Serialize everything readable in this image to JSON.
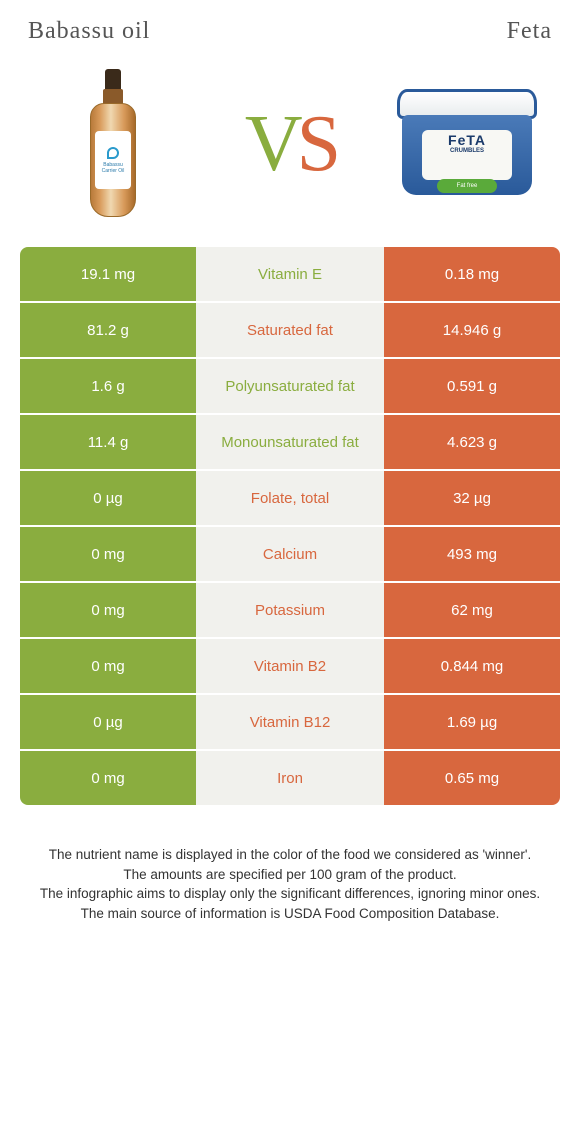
{
  "colors": {
    "left_food": "#8aad3f",
    "right_food": "#d8673e",
    "mid_bg": "#f1f1ed",
    "text_white": "#ffffff"
  },
  "header": {
    "left_title": "Babassu oil",
    "right_title": "Feta"
  },
  "vs": {
    "v": "V",
    "s": "S"
  },
  "bottle_label": {
    "line1": "Babassu",
    "line2": "Carrier Oil"
  },
  "tub": {
    "feta": "FeTA",
    "sub": "CRUMBLES",
    "badge": "Fat free"
  },
  "rows": [
    {
      "left": "19.1 mg",
      "label": "Vitamin E",
      "right": "0.18 mg",
      "winner": "left"
    },
    {
      "left": "81.2 g",
      "label": "Saturated fat",
      "right": "14.946 g",
      "winner": "right"
    },
    {
      "left": "1.6 g",
      "label": "Polyunsaturated fat",
      "right": "0.591 g",
      "winner": "left"
    },
    {
      "left": "11.4 g",
      "label": "Monounsaturated fat",
      "right": "4.623 g",
      "winner": "left"
    },
    {
      "left": "0 µg",
      "label": "Folate, total",
      "right": "32 µg",
      "winner": "right"
    },
    {
      "left": "0 mg",
      "label": "Calcium",
      "right": "493 mg",
      "winner": "right"
    },
    {
      "left": "0 mg",
      "label": "Potassium",
      "right": "62 mg",
      "winner": "right"
    },
    {
      "left": "0 mg",
      "label": "Vitamin B2",
      "right": "0.844 mg",
      "winner": "right"
    },
    {
      "left": "0 µg",
      "label": "Vitamin B12",
      "right": "1.69 µg",
      "winner": "right"
    },
    {
      "left": "0 mg",
      "label": "Iron",
      "right": "0.65 mg",
      "winner": "right"
    }
  ],
  "footer": {
    "l1": "The nutrient name is displayed in the color of the food we considered as 'winner'.",
    "l2": "The amounts are specified per 100 gram of the product.",
    "l3": "The infographic aims to display only the significant differences, ignoring minor ones.",
    "l4": "The main source of information is USDA Food Composition Database."
  }
}
